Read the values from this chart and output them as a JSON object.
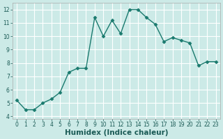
{
  "title": "",
  "xlabel": "Humidex (Indice chaleur)",
  "ylabel": "",
  "x": [
    0,
    1,
    2,
    3,
    4,
    5,
    6,
    7,
    8,
    9,
    10,
    11,
    12,
    13,
    14,
    15,
    16,
    17,
    18,
    19,
    20,
    21,
    22,
    23
  ],
  "y": [
    5.2,
    4.5,
    4.5,
    5.0,
    5.3,
    5.8,
    7.3,
    7.6,
    7.6,
    11.4,
    10.0,
    11.2,
    10.2,
    12.0,
    12.0,
    11.4,
    10.9,
    9.6,
    9.9,
    9.7,
    9.5,
    7.8,
    8.1,
    8.1
  ],
  "line_color": "#1a7a6e",
  "marker": "D",
  "marker_size": 2.5,
  "bg_color": "#cceae7",
  "grid_color": "#ffffff",
  "ylim": [
    3.8,
    12.5
  ],
  "xlim": [
    -0.5,
    23.5
  ],
  "yticks": [
    4,
    5,
    6,
    7,
    8,
    9,
    10,
    11,
    12
  ],
  "xticks": [
    0,
    1,
    2,
    3,
    4,
    5,
    6,
    7,
    8,
    9,
    10,
    11,
    12,
    13,
    14,
    15,
    16,
    17,
    18,
    19,
    20,
    21,
    22,
    23
  ],
  "tick_fontsize": 5.5,
  "xlabel_fontsize": 7.5,
  "line_width": 1.0
}
